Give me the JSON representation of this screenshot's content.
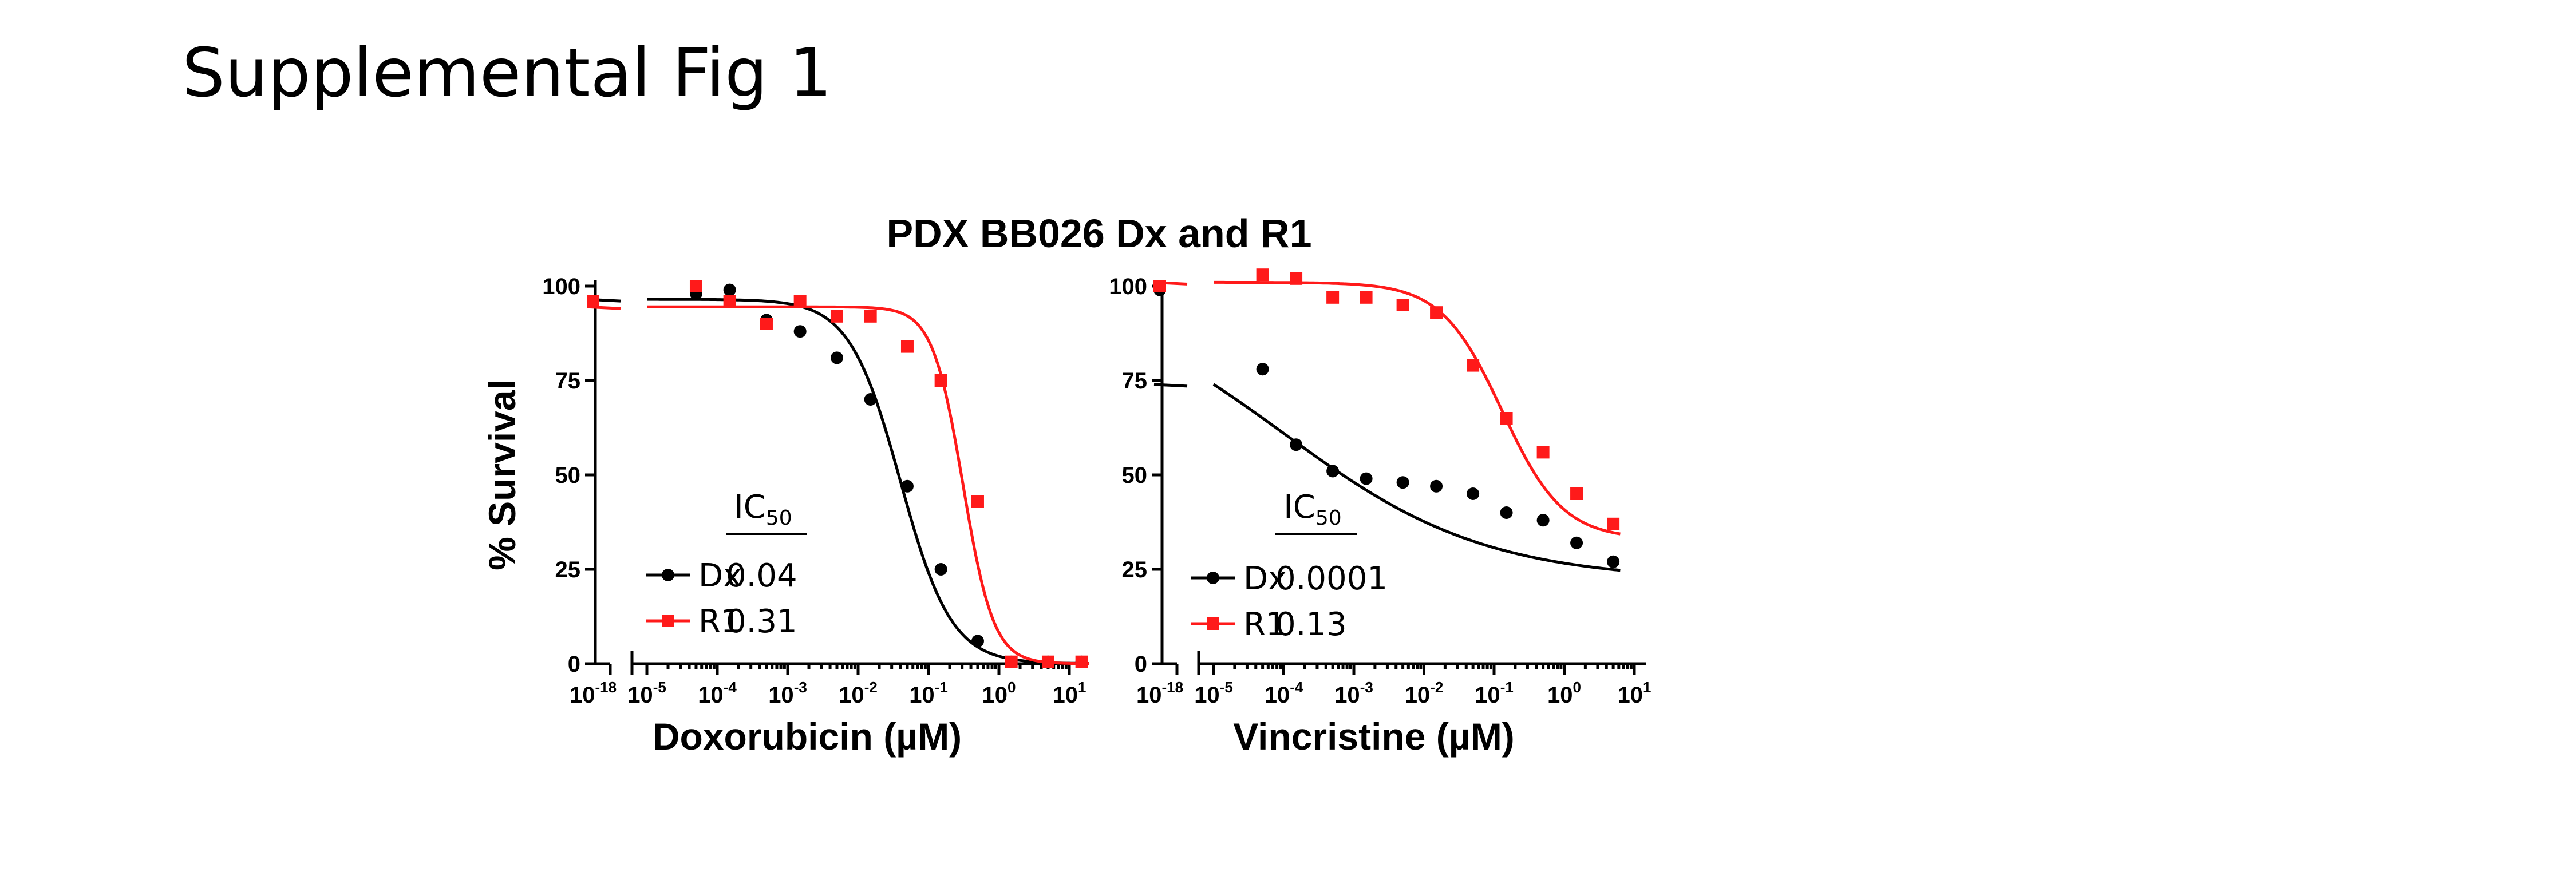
{
  "figure_label": "Supplemental Fig 1",
  "panel_title": "PDX BB026 Dx and R1",
  "colors": {
    "dx": "#000000",
    "r1": "#ff1a1a"
  },
  "chart_data": [
    {
      "type": "scatter",
      "title": "",
      "xlabel": "Doxorubicin (µM)",
      "ylabel": "% Survival",
      "x_scale": "log",
      "x_break": {
        "from": "10^-18",
        "to": "10^-5"
      },
      "xlim": [
        1e-05,
        10
      ],
      "ylim": [
        0,
        100
      ],
      "y_ticks": [
        0,
        25,
        50,
        75,
        100
      ],
      "x_tick_labels": [
        {
          "base": "10",
          "exp": "-18"
        },
        {
          "base": "10",
          "exp": "-5"
        },
        {
          "base": "10",
          "exp": "-4"
        },
        {
          "base": "10",
          "exp": "-3"
        },
        {
          "base": "10",
          "exp": "-2"
        },
        {
          "base": "10",
          "exp": "-1"
        },
        {
          "base": "10",
          "exp": "0"
        },
        {
          "base": "10",
          "exp": "1"
        }
      ],
      "legend": {
        "header": "IC",
        "header_sub": "50",
        "placement": "bottom-left"
      },
      "series": [
        {
          "name": "Dx",
          "ic50_label": "0.04",
          "color": "#000000",
          "marker": "circle",
          "zero_value": 96,
          "points": [
            [
              5e-05,
              98
            ],
            [
              0.00015,
              99
            ],
            [
              0.0005,
              91
            ],
            [
              0.0015,
              88
            ],
            [
              0.005,
              81
            ],
            [
              0.015,
              70
            ],
            [
              0.05,
              47
            ],
            [
              0.15,
              25
            ],
            [
              0.5,
              6
            ],
            [
              1.5,
              0.5
            ],
            [
              5,
              0.5
            ],
            [
              15,
              0.5
            ]
          ],
          "fit": {
            "top": 96.5,
            "bottom": 0,
            "ic50": 0.04,
            "hill": 1.2
          }
        },
        {
          "name": "R1",
          "ic50_label": "0.31",
          "color": "#ff1a1a",
          "marker": "square",
          "zero_value": 96,
          "points": [
            [
              5e-05,
              100
            ],
            [
              0.00015,
              96
            ],
            [
              0.0005,
              90
            ],
            [
              0.0015,
              96
            ],
            [
              0.005,
              92
            ],
            [
              0.015,
              92
            ],
            [
              0.05,
              84
            ],
            [
              0.15,
              75
            ],
            [
              0.5,
              43
            ],
            [
              1.5,
              0.5
            ],
            [
              5,
              0.5
            ],
            [
              15,
              0.5
            ]
          ],
          "fit": {
            "top": 94.5,
            "bottom": 0,
            "ic50": 0.31,
            "hill": 2.0
          }
        }
      ]
    },
    {
      "type": "scatter",
      "title": "",
      "xlabel": "Vincristine (µM)",
      "ylabel": "",
      "x_scale": "log",
      "x_break": {
        "from": "10^-18",
        "to": "10^-5"
      },
      "xlim": [
        1e-05,
        10
      ],
      "ylim": [
        0,
        100
      ],
      "y_ticks": [
        0,
        25,
        50,
        75,
        100
      ],
      "x_tick_labels": [
        {
          "base": "10",
          "exp": "-18"
        },
        {
          "base": "10",
          "exp": "-5"
        },
        {
          "base": "10",
          "exp": "-4"
        },
        {
          "base": "10",
          "exp": "-3"
        },
        {
          "base": "10",
          "exp": "-2"
        },
        {
          "base": "10",
          "exp": "-1"
        },
        {
          "base": "10",
          "exp": "0"
        },
        {
          "base": "10",
          "exp": "1"
        }
      ],
      "legend": {
        "header": "IC",
        "header_sub": "50",
        "placement": "bottom-left"
      },
      "series": [
        {
          "name": "Dx",
          "ic50_label": "0.0001",
          "color": "#000000",
          "marker": "circle",
          "zero_value": 99,
          "points": [
            [
              5e-05,
              78
            ],
            [
              0.00015,
              58
            ],
            [
              0.0005,
              51
            ],
            [
              0.0015,
              49
            ],
            [
              0.005,
              48
            ],
            [
              0.015,
              47
            ],
            [
              0.05,
              45
            ],
            [
              0.15,
              40
            ],
            [
              0.5,
              38
            ],
            [
              1.5,
              32
            ],
            [
              5,
              27
            ]
          ],
          "fit": {
            "top": 100,
            "bottom": 22,
            "ic50": 0.0001,
            "hill": 0.3
          }
        },
        {
          "name": "R1",
          "ic50_label": "0.13",
          "color": "#ff1a1a",
          "marker": "square",
          "zero_value": 100,
          "points": [
            [
              5e-05,
              103
            ],
            [
              0.00015,
              102
            ],
            [
              0.0005,
              97
            ],
            [
              0.0015,
              97
            ],
            [
              0.005,
              95
            ],
            [
              0.015,
              93
            ],
            [
              0.05,
              79
            ],
            [
              0.15,
              65
            ],
            [
              0.5,
              56
            ],
            [
              1.5,
              45
            ],
            [
              5,
              37
            ]
          ],
          "fit": {
            "top": 101,
            "bottom": 33,
            "ic50": 0.13,
            "hill": 1.0
          }
        }
      ]
    }
  ]
}
